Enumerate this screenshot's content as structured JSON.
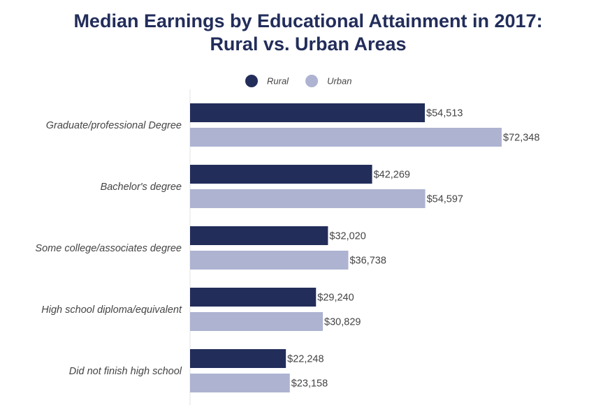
{
  "chart_data": {
    "type": "bar",
    "orientation": "horizontal",
    "title": [
      "Median Earnings by Educational Attainment in 2017:",
      "Rural vs. Urban Areas"
    ],
    "categories": [
      "Graduate/professional Degree",
      "Bachelor's degree",
      "Some college/associates degree",
      "High school diploma/equivalent",
      "Did not finish high school"
    ],
    "series": [
      {
        "name": "Rural",
        "color": "#222d5a",
        "values": [
          54513,
          42269,
          32020,
          29240,
          22248
        ],
        "value_labels": [
          "$54,513",
          "$42,269",
          "$32,020",
          "$29,240",
          "$22,248"
        ]
      },
      {
        "name": "Urban",
        "color": "#adb3d1",
        "values": [
          72348,
          54597,
          36738,
          30829,
          23158
        ],
        "value_labels": [
          "$72,348",
          "$54,597",
          "$36,738",
          "$30,829",
          "$23,158"
        ]
      }
    ],
    "legend_position": "top"
  }
}
